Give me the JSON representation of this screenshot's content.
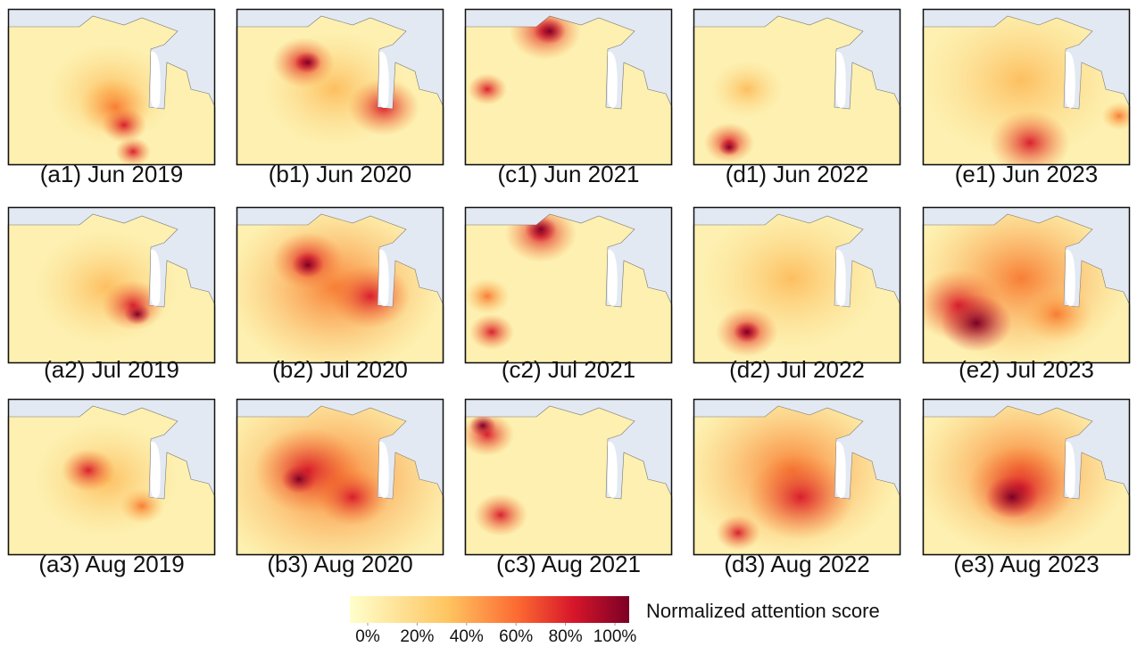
{
  "rows": [
    [
      "(a1) Jun 2019",
      "(b1) Jun 2020",
      "(c1) Jun 2021",
      "(d1) Jun 2022",
      "(e1) Jun 2023"
    ],
    [
      "(a2) Jul 2019",
      "(b2) Jul 2020",
      "(c2) Jul 2021",
      "(d2) Jul 2022",
      "(e2) Jul 2023"
    ],
    [
      "(a3) Aug 2019",
      "(b3) Aug 2020",
      "(c3) Aug 2021",
      "(d3) Aug 2022",
      "(e3) Aug 2023"
    ]
  ],
  "colorbar": {
    "title": "Normalized attention score",
    "ticks": [
      {
        "value": 0,
        "label": "0%"
      },
      {
        "value": 20,
        "label": "20%"
      },
      {
        "value": 40,
        "label": "40%"
      },
      {
        "value": 60,
        "label": "60%"
      },
      {
        "value": 80,
        "label": "80%"
      },
      {
        "value": 100,
        "label": "100%"
      }
    ]
  }
}
